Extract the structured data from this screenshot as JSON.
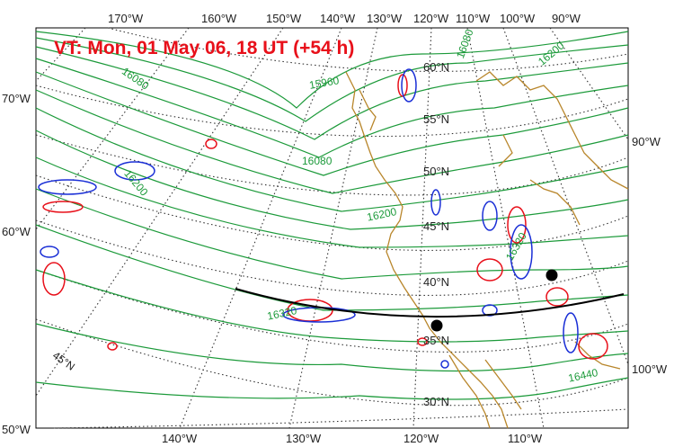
{
  "title": "VT:  Mon, 01 May 06, 18 UT (+54 h)",
  "top_longitudes": [
    "170°W",
    "160°W",
    "150°W",
    "140°W",
    "130°W",
    "120°W",
    "110°W",
    "100°W",
    "90°W"
  ],
  "bottom_longitudes": [
    "140°W",
    "130°W",
    "120°W",
    "110°W"
  ],
  "left_longitudes": [
    "70°W",
    "60°W",
    "50°W"
  ],
  "right_longitudes": [
    "90°W",
    "100°W"
  ],
  "latitudes": [
    "60°N",
    "55°N",
    "50°N",
    "45°N",
    "40°N",
    "35°N",
    "30°N",
    "45°N"
  ],
  "height_contours": [
    "16080",
    "15960",
    "16080",
    "16200",
    "16200",
    "16200",
    "16320",
    "16320",
    "16440",
    "16080",
    "16200"
  ],
  "colors": {
    "title": "#e8101a",
    "height_contour": "#1c9a3a",
    "coastline": "#b8862b",
    "positive_anomaly": "#e8101a",
    "negative_anomaly": "#1a2fd6",
    "graticule": "#333333",
    "cross_section": "#000000"
  }
}
